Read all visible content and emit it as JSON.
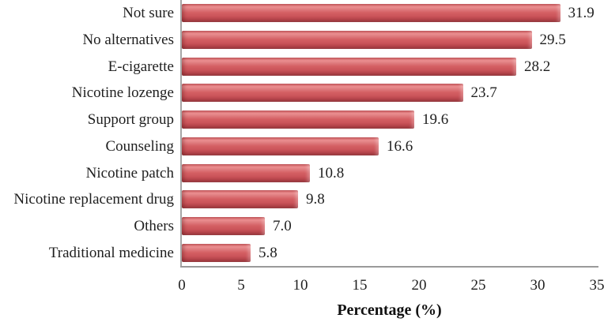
{
  "chart_data": {
    "type": "bar",
    "orientation": "horizontal",
    "categories": [
      "Not sure",
      "No alternatives",
      "E-cigarette",
      "Nicotine lozenge",
      "Support group",
      "Counseling",
      "Nicotine patch",
      "Nicotine replacement drug",
      "Others",
      "Traditional medicine"
    ],
    "values": [
      31.9,
      29.5,
      28.2,
      23.7,
      19.6,
      16.6,
      10.8,
      9.8,
      7.0,
      5.8
    ],
    "value_labels": [
      "31.9",
      "29.5",
      "28.2",
      "23.7",
      "19.6",
      "16.6",
      "10.8",
      "9.8",
      "7.0",
      "5.8"
    ],
    "title": "",
    "xlabel": "Percentage (%)",
    "ylabel": "",
    "xlim": [
      0,
      35
    ],
    "x_tick_labels": [
      "0",
      "5",
      "10",
      "15",
      "20",
      "25",
      "30",
      "35"
    ],
    "x_tick_values": [
      0,
      5,
      10,
      15,
      20,
      25,
      30,
      35
    ],
    "grid": false,
    "legend": false,
    "data_labels_shown": true,
    "colors": {
      "bar_base": "#d15356",
      "bar_highlight": "#eb8f91",
      "bar_shadow": "#922f35",
      "axis_line": "#a6a6a6",
      "text": "#1f1f1f"
    }
  }
}
